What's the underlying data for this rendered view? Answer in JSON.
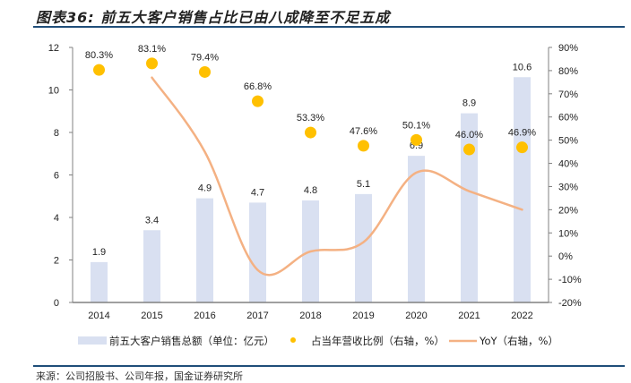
{
  "header": {
    "title": "图表36:  前五大客户销售占比已由八成降至不足五成"
  },
  "footer": {
    "source": "来源：公司招股书、公司年报，国金证券研究所"
  },
  "colors": {
    "bar": "#d9e0f1",
    "dot": "#ffc000",
    "line": "#f4b183",
    "axis": "#808080",
    "rule": "#1f4e79"
  },
  "chart_data": {
    "type": "bar",
    "title": "前五大客户销售占比已由八成降至不足五成",
    "categories": [
      "2014",
      "2015",
      "2016",
      "2017",
      "2018",
      "2019",
      "2020",
      "2021",
      "2022"
    ],
    "series": [
      {
        "name": "前五大客户销售总额（单位：亿元）",
        "type": "bar",
        "axis": "left",
        "values": [
          1.9,
          3.4,
          4.9,
          4.7,
          4.8,
          5.1,
          6.9,
          8.9,
          10.6
        ],
        "labels": [
          "1.9",
          "3.4",
          "4.9",
          "4.7",
          "4.8",
          "5.1",
          "6.9",
          "8.9",
          "10.6"
        ]
      },
      {
        "name": "占当年营收比例（右轴，%）",
        "type": "scatter",
        "axis": "right",
        "values": [
          80.3,
          83.1,
          79.4,
          66.8,
          53.3,
          47.6,
          50.1,
          46.0,
          46.9
        ],
        "labels": [
          "80.3%",
          "83.1%",
          "79.4%",
          "66.8%",
          "53.3%",
          "47.6%",
          "50.1%",
          "46.0%",
          "46.9%"
        ]
      },
      {
        "name": "YoY（右轴，%）",
        "type": "line",
        "axis": "right",
        "values": [
          null,
          77,
          45,
          -6,
          2,
          6,
          36,
          28,
          20
        ]
      }
    ],
    "left_axis": {
      "ylim": [
        0,
        12
      ],
      "ticks": [
        "0",
        "2",
        "4",
        "6",
        "8",
        "10",
        "12"
      ],
      "tick_values": [
        0,
        2,
        4,
        6,
        8,
        10,
        12
      ]
    },
    "right_axis": {
      "ylim": [
        -20,
        90
      ],
      "ticks": [
        "-20%",
        "-10%",
        "0%",
        "10%",
        "20%",
        "30%",
        "40%",
        "50%",
        "60%",
        "70%",
        "80%",
        "90%"
      ],
      "tick_values": [
        -20,
        -10,
        0,
        10,
        20,
        30,
        40,
        50,
        60,
        70,
        80,
        90
      ]
    },
    "xlabel": "",
    "ylabel": "",
    "grid": false,
    "legend_position": "bottom",
    "legend": [
      "前五大客户销售总额（单位：亿元）",
      "占当年营收比例（右轴，%）",
      "YoY（右轴，%）"
    ]
  }
}
